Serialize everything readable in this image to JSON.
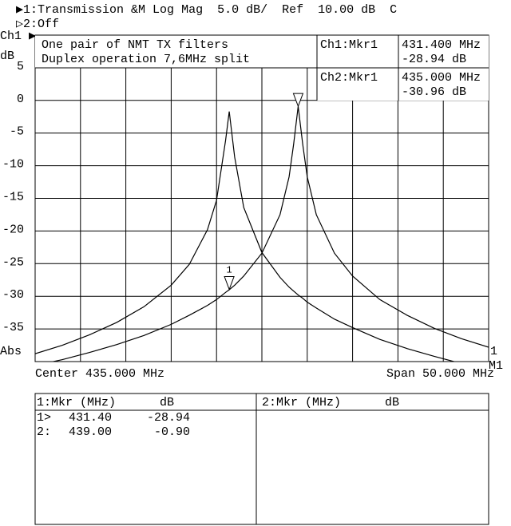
{
  "header": {
    "line1": "▶1:Transmission &M Log Mag  5.0 dB/  Ref  10.00 dB  C",
    "line2": "▷2:Off"
  },
  "chart_data": {
    "type": "line",
    "y_channel": "Ch1 ▶",
    "y_unit": "dB",
    "y_format": "Abs",
    "right_labels": [
      "1",
      "M1"
    ],
    "annotations": [
      "One pair of NMT TX filters",
      "Duplex operation 7,6MHz split"
    ],
    "readouts": [
      {
        "label": "Ch1:Mkr1",
        "freq": "431.400 MHz",
        "value": "-28.94 dB"
      },
      {
        "label": "Ch2:Mkr1",
        "freq": "435.000 MHz",
        "value": "-30.96 dB"
      }
    ],
    "center_label": "Center 435.000 MHz",
    "span_label": "Span 50.000 MHz",
    "x": [
      410,
      413,
      416,
      419,
      422,
      425,
      427,
      429,
      430,
      431,
      431.4,
      432,
      433,
      435,
      437,
      438,
      438.5,
      439,
      439.5,
      440,
      441,
      443,
      445,
      448,
      451,
      454,
      457,
      460
    ],
    "series": [
      {
        "color": "#000000",
        "values": [
          -40.6,
          -39.7,
          -38.6,
          -37.4,
          -36.0,
          -34.3,
          -32.9,
          -31.4,
          -30.5,
          -29.4,
          -29.0,
          -28.3,
          -26.9,
          -23.4,
          -17.5,
          -11.7,
          -6.7,
          -0.9,
          -6.7,
          -11.7,
          -17.5,
          -23.4,
          -26.9,
          -30.5,
          -32.9,
          -34.9,
          -36.5,
          -37.8
        ]
      },
      {
        "color": "#000000",
        "values": [
          -38.8,
          -37.5,
          -35.9,
          -34.0,
          -31.6,
          -28.3,
          -25.1,
          -19.8,
          -15.3,
          -6.1,
          -1.7,
          -8.7,
          -16.4,
          -23.3,
          -27.1,
          -28.6,
          -29.2,
          -29.8,
          -30.3,
          -30.9,
          -31.8,
          -33.5,
          -34.8,
          -36.6,
          -38.0,
          -39.2,
          -40.3,
          -41.3
        ]
      }
    ],
    "markers": [
      {
        "label": "1",
        "x": 431.4,
        "y": -28.94
      },
      {
        "x": 439,
        "y": -0.9
      }
    ],
    "xlim": [
      410,
      460
    ],
    "ylim": [
      -40,
      10
    ],
    "xticks": [
      410,
      415,
      420,
      425,
      430,
      435,
      440,
      445,
      450,
      455,
      460
    ],
    "yticks": [
      5,
      0,
      -5,
      -10,
      -15,
      -20,
      -25,
      -30,
      -35
    ],
    "grid": true
  },
  "marker_table": {
    "left_header": [
      "1:Mkr (MHz)",
      "dB"
    ],
    "right_header": [
      "2:Mkr (MHz)",
      "dB"
    ],
    "rows": [
      [
        "1>",
        "431.40",
        "-28.94"
      ],
      [
        "2:",
        "439.00",
        "-0.90"
      ]
    ]
  }
}
